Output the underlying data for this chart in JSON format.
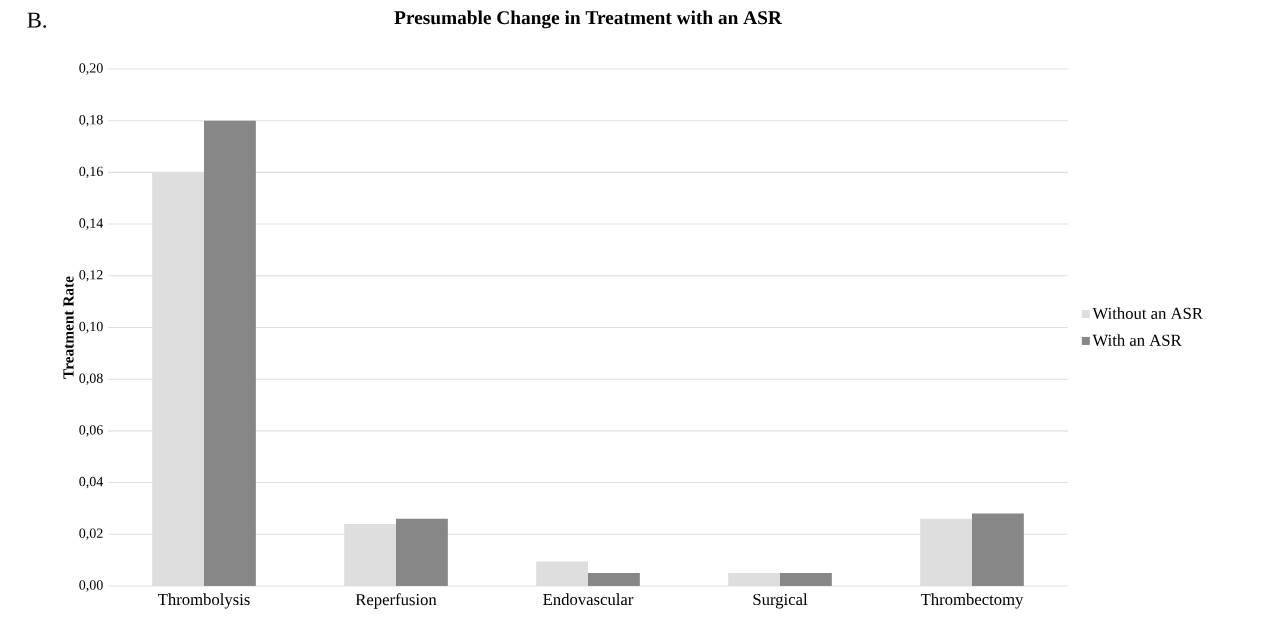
{
  "chart_data": {
    "type": "bar",
    "title": "Presumable Change in Treatment with an ASR",
    "ylabel": "Treatment Rate",
    "annotations": [
      "B."
    ],
    "categories": [
      "Thrombolysis",
      "Reperfusion",
      "Endovascular",
      "Surgical",
      "Thrombectomy"
    ],
    "series": [
      {
        "name": "Without an ASR",
        "color": "#dedede",
        "values": [
          0.16,
          0.024,
          0.0095,
          0.005,
          0.026
        ]
      },
      {
        "name": "With an ASR",
        "color": "#878787",
        "values": [
          0.18,
          0.026,
          0.005,
          0.005,
          0.028
        ]
      }
    ],
    "ylim": [
      0,
      0.2
    ],
    "yticks": [
      {
        "value": 0,
        "label": "0,00"
      },
      {
        "value": 0.02,
        "label": "0,02"
      },
      {
        "value": 0.04,
        "label": "0,04"
      },
      {
        "value": 0.06,
        "label": "0,06"
      },
      {
        "value": 0.08,
        "label": "0,08"
      },
      {
        "value": 0.1,
        "label": "0,10"
      },
      {
        "value": 0.12,
        "label": "0,12"
      },
      {
        "value": 0.14,
        "label": "0,14"
      },
      {
        "value": 0.16,
        "label": "0,16"
      },
      {
        "value": 0.18,
        "label": "0,18"
      },
      {
        "value": 0.2,
        "label": "0,20"
      }
    ],
    "grid": "y",
    "legend": "right"
  }
}
